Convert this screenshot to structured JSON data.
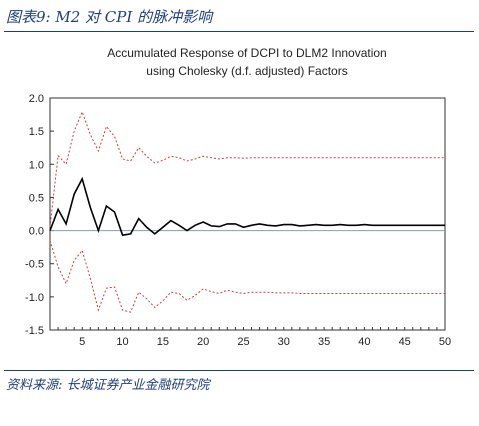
{
  "figure": {
    "title": "图表9:  M2 对 CPI 的脉冲影响",
    "source": "资料来源:  长城证券产业金融研究院"
  },
  "chart_data": {
    "type": "line",
    "title": "Accumulated Response of DCPI to DLM2 Innovation",
    "subtitle": "using Cholesky (d.f. adjusted) Factors",
    "xlabel": "",
    "ylabel": "",
    "xlim": [
      1,
      50
    ],
    "ylim": [
      -1.5,
      2.0
    ],
    "x_ticks": [
      5,
      10,
      15,
      20,
      25,
      30,
      35,
      40,
      45,
      50
    ],
    "y_ticks": [
      -1.5,
      -1.0,
      -0.5,
      0.0,
      0.5,
      1.0,
      1.5,
      2.0
    ],
    "y_tick_labels": [
      "-1.5",
      "-1.0",
      "-0.5",
      "0.0",
      "0.5",
      "1.0",
      "1.5",
      "2.0"
    ],
    "grid": false,
    "zero_line": true,
    "x": [
      1,
      2,
      3,
      4,
      5,
      6,
      7,
      8,
      9,
      10,
      11,
      12,
      13,
      14,
      15,
      16,
      17,
      18,
      19,
      20,
      21,
      22,
      23,
      24,
      25,
      26,
      27,
      28,
      29,
      30,
      31,
      32,
      33,
      34,
      35,
      36,
      37,
      38,
      39,
      40,
      41,
      42,
      43,
      44,
      45,
      46,
      47,
      48,
      49,
      50
    ],
    "series": [
      {
        "style": "solid",
        "color": "#000000",
        "values": [
          0.0,
          0.32,
          0.1,
          0.55,
          0.78,
          0.35,
          0.0,
          0.37,
          0.28,
          -0.07,
          -0.05,
          0.18,
          0.05,
          -0.05,
          0.05,
          0.15,
          0.08,
          0.0,
          0.08,
          0.13,
          0.07,
          0.06,
          0.1,
          0.1,
          0.05,
          0.08,
          0.1,
          0.08,
          0.07,
          0.09,
          0.09,
          0.07,
          0.08,
          0.09,
          0.08,
          0.08,
          0.09,
          0.08,
          0.08,
          0.09,
          0.08,
          0.08,
          0.08,
          0.08,
          0.08,
          0.08,
          0.08,
          0.08,
          0.08,
          0.08
        ]
      },
      {
        "style": "dotted",
        "color": "#c84040",
        "values": [
          0.05,
          1.13,
          1.0,
          1.5,
          1.79,
          1.45,
          1.2,
          1.57,
          1.42,
          1.08,
          1.05,
          1.25,
          1.12,
          1.02,
          1.06,
          1.12,
          1.1,
          1.05,
          1.08,
          1.12,
          1.1,
          1.08,
          1.1,
          1.1,
          1.09,
          1.1,
          1.1,
          1.1,
          1.1,
          1.1,
          1.1,
          1.1,
          1.1,
          1.1,
          1.1,
          1.1,
          1.1,
          1.1,
          1.1,
          1.1,
          1.1,
          1.1,
          1.1,
          1.1,
          1.1,
          1.1,
          1.1,
          1.1,
          1.1,
          1.1
        ]
      },
      {
        "style": "dotted",
        "color": "#c84040",
        "values": [
          -0.15,
          -0.55,
          -0.8,
          -0.45,
          -0.3,
          -0.72,
          -1.2,
          -0.87,
          -0.85,
          -1.2,
          -1.23,
          -0.93,
          -1.03,
          -1.16,
          -1.06,
          -0.93,
          -0.95,
          -1.05,
          -0.98,
          -0.88,
          -0.92,
          -0.95,
          -0.9,
          -0.93,
          -0.95,
          -0.93,
          -0.93,
          -0.93,
          -0.94,
          -0.94,
          -0.94,
          -0.95,
          -0.95,
          -0.95,
          -0.95,
          -0.95,
          -0.95,
          -0.95,
          -0.95,
          -0.95,
          -0.95,
          -0.95,
          -0.95,
          -0.95,
          -0.95,
          -0.95,
          -0.95,
          -0.95,
          -0.95,
          -0.95
        ]
      }
    ]
  }
}
